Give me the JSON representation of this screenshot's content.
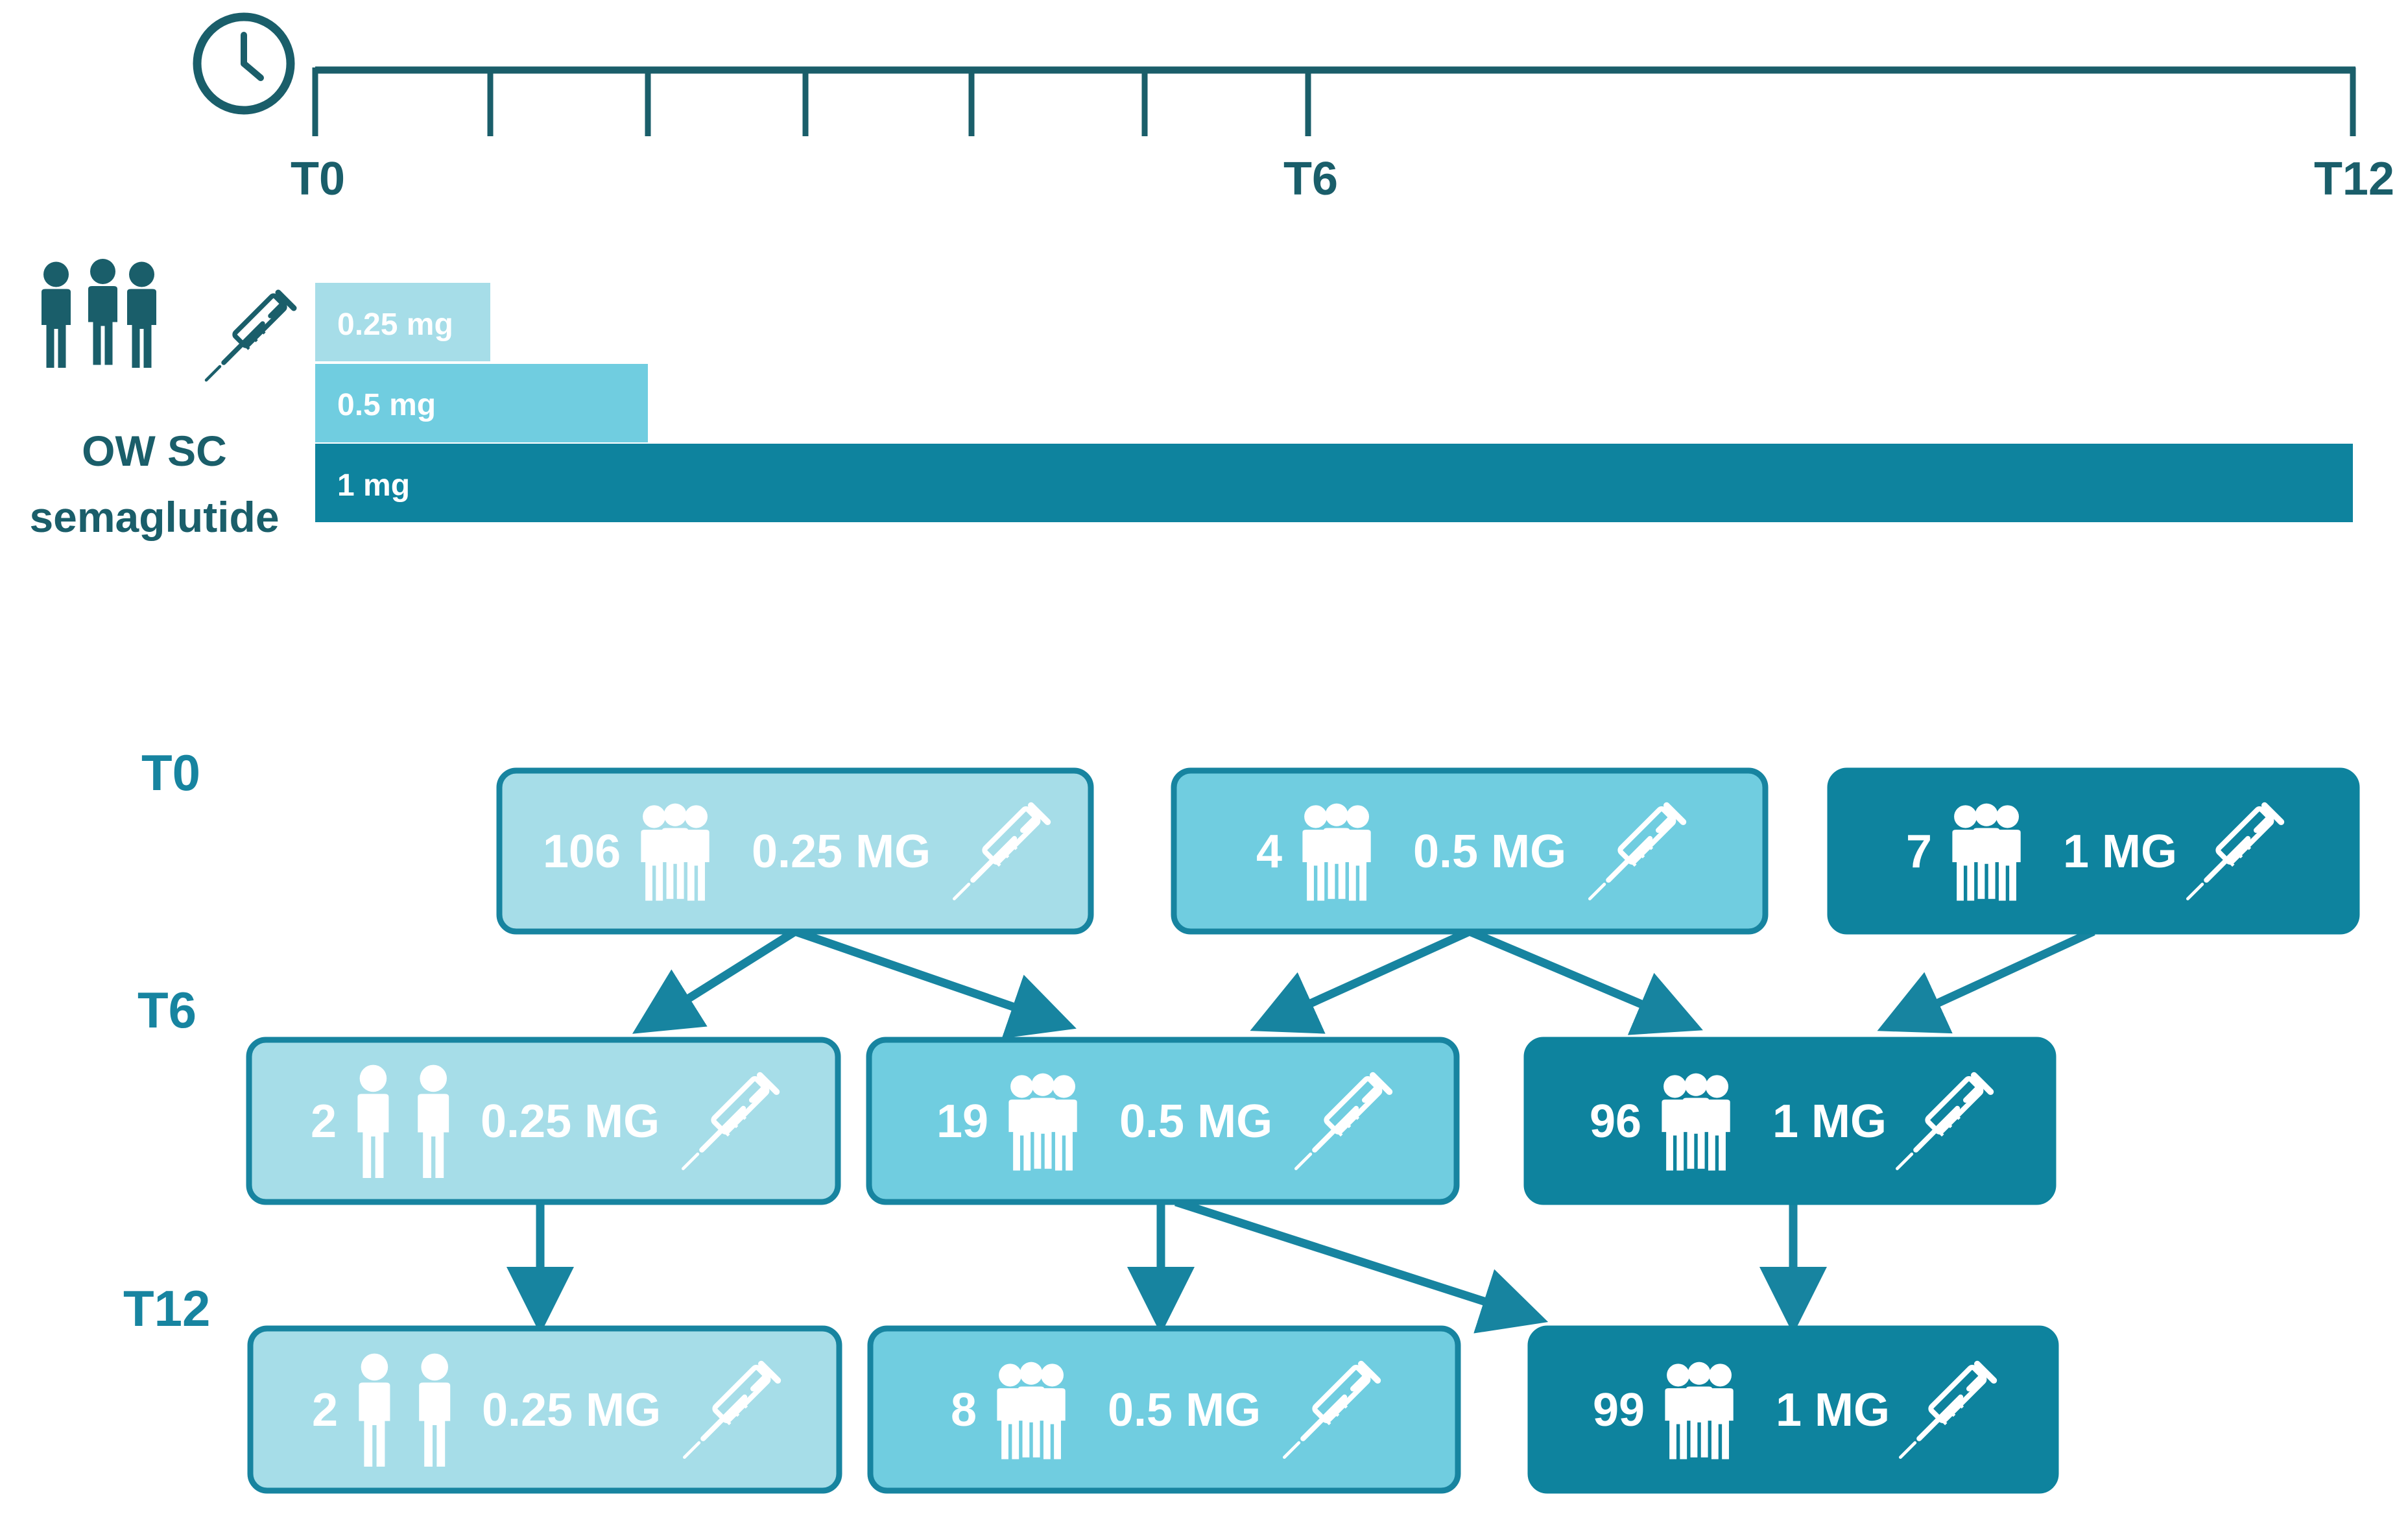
{
  "colors": {
    "dark": "#1a5e6a",
    "teal": "#1784a0",
    "arrow": "#1784a0",
    "stage_label": "#1784a0",
    "dose_025_fill": "#a6dde8",
    "dose_05_fill": "#70cde0",
    "dose_1_fill": "#0e839e",
    "white": "#ffffff"
  },
  "timeline": {
    "icon": "clock-icon",
    "labels": {
      "start": "T0",
      "mid": "T6",
      "end": "T12"
    }
  },
  "dosing": {
    "icons": [
      "people-group-icon",
      "syringe-icon"
    ],
    "label_line1": "OW SC",
    "label_line2": "semaglutide",
    "bars": [
      {
        "label": "0.25 mg",
        "from_month": 0,
        "to_month": 1
      },
      {
        "label": "0.5 mg",
        "from_month": 0,
        "to_month": 2
      },
      {
        "label": "1 mg",
        "from_month": 0,
        "to_month": 12
      }
    ]
  },
  "flow": {
    "stages": [
      "T0",
      "T6",
      "T12"
    ],
    "t0": [
      {
        "count": "106",
        "dose": "0.25 MG",
        "people_icon": "group-of-three-icon"
      },
      {
        "count": "4",
        "dose": "0.5 MG",
        "people_icon": "group-of-three-icon"
      },
      {
        "count": "7",
        "dose": "1 MG",
        "people_icon": "group-of-three-icon"
      }
    ],
    "t6": [
      {
        "count": "2",
        "dose": "0.25 MG",
        "people_icon": "pair-of-people-icon"
      },
      {
        "count": "19",
        "dose": "0.5 MG",
        "people_icon": "group-of-three-icon"
      },
      {
        "count": "96",
        "dose": "1 MG",
        "people_icon": "group-of-three-icon"
      }
    ],
    "t12": [
      {
        "count": "2",
        "dose": "0.25 MG",
        "people_icon": "pair-of-people-icon"
      },
      {
        "count": "8",
        "dose": "0.5 MG",
        "people_icon": "group-of-three-icon"
      },
      {
        "count": "99",
        "dose": "1 MG",
        "people_icon": "group-of-three-icon"
      }
    ],
    "transitions": [
      {
        "from": "T0-0.25 MG",
        "to": "T6-0.25 MG"
      },
      {
        "from": "T0-0.25 MG",
        "to": "T6-0.5 MG"
      },
      {
        "from": "T0-0.5 MG",
        "to": "T6-0.5 MG"
      },
      {
        "from": "T0-0.5 MG",
        "to": "T6-1 MG"
      },
      {
        "from": "T0-1 MG",
        "to": "T6-1 MG"
      },
      {
        "from": "T6-0.25 MG",
        "to": "T12-0.25 MG"
      },
      {
        "from": "T6-0.5 MG",
        "to": "T12-0.5 MG"
      },
      {
        "from": "T6-0.5 MG",
        "to": "T12-1 MG"
      },
      {
        "from": "T6-1 MG",
        "to": "T12-1 MG"
      }
    ]
  }
}
